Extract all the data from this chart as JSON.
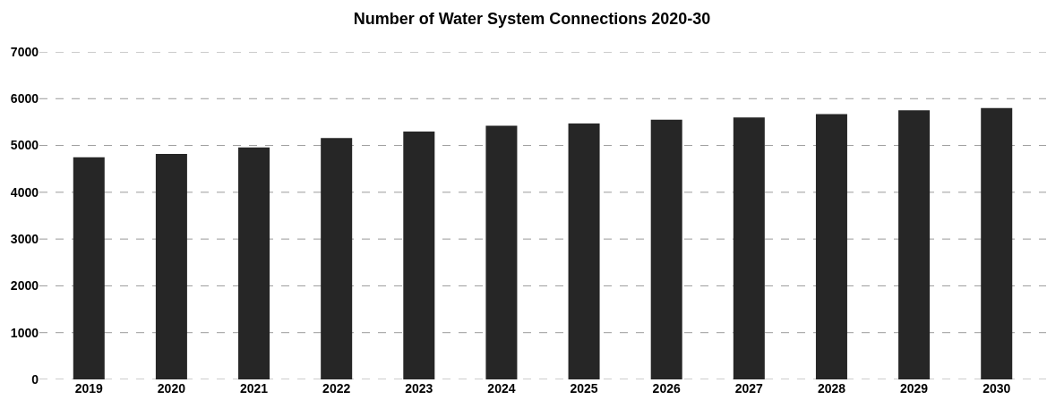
{
  "chart_data": {
    "type": "bar",
    "title": "Number of Water System Connections 2020-30",
    "categories": [
      "2019",
      "2020",
      "2021",
      "2022",
      "2023",
      "2024",
      "2025",
      "2026",
      "2027",
      "2028",
      "2029",
      "2030"
    ],
    "values": [
      4750,
      4820,
      4960,
      5160,
      5300,
      5420,
      5470,
      5550,
      5600,
      5670,
      5750,
      5800
    ],
    "color": "#262626",
    "ylim": [
      0,
      7000
    ],
    "yticks": [
      0,
      1000,
      2000,
      3000,
      4000,
      5000,
      6000,
      7000
    ],
    "grid": "y"
  }
}
